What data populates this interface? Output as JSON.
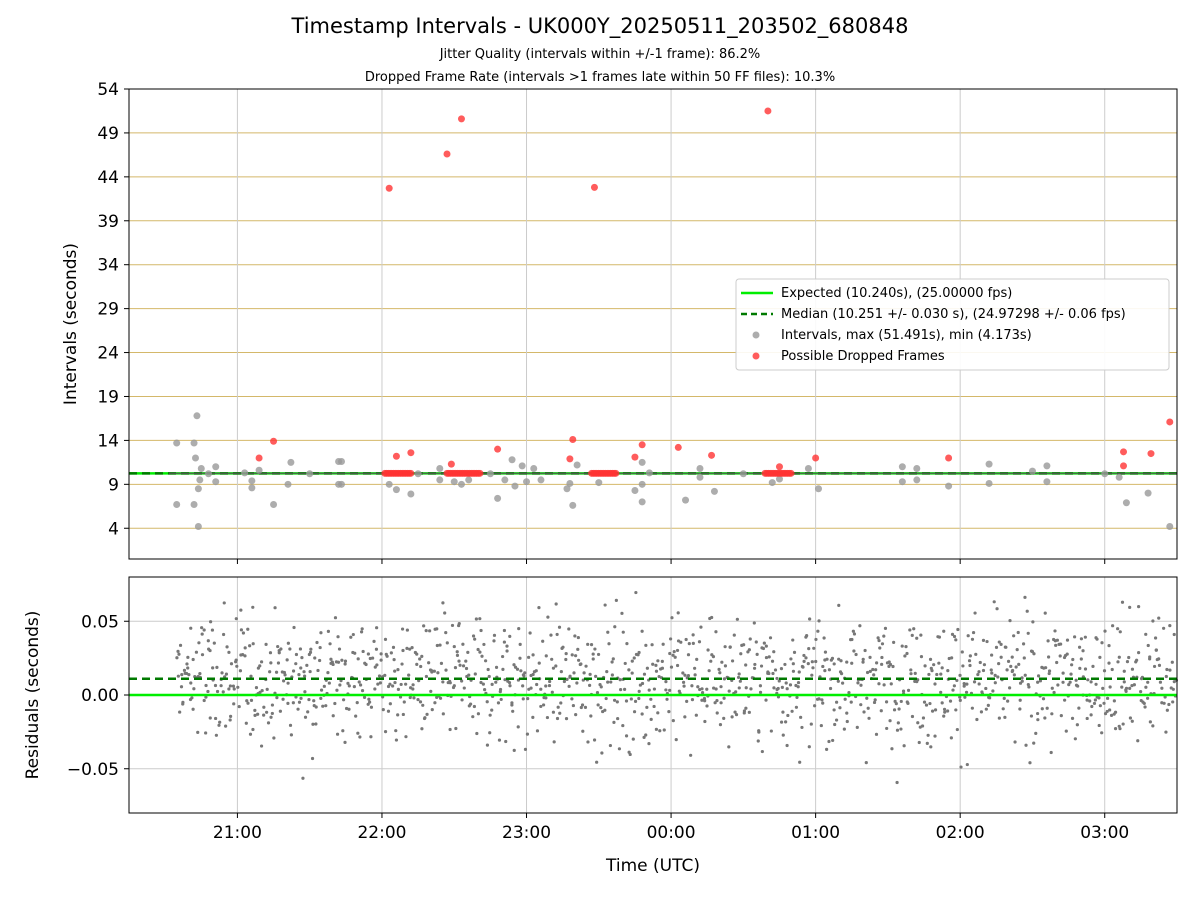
{
  "header": {
    "title": "Timestamp Intervals - UK000Y_20250511_203502_680848",
    "subtitle1": "Jitter Quality (intervals within +/-1 frame): 86.2%",
    "subtitle2": "Dropped Frame Rate (intervals >1 frames late within 50 FF files): 10.3%"
  },
  "colors": {
    "expected": "#00ee00",
    "median": "#007a00",
    "intervals": "#999999",
    "dropped": "#ff3333",
    "hgrid_top": "#d4b86a",
    "grid": "#cccccc",
    "residual_points": "#777777"
  },
  "chart_data": [
    {
      "type": "scatter",
      "ylabel": "Intervals (seconds)",
      "xlabel": "",
      "x_ticks": [
        "21:00",
        "22:00",
        "23:00",
        "00:00",
        "01:00",
        "02:00",
        "03:00"
      ],
      "y_ticks": [
        4,
        9,
        14,
        19,
        24,
        29,
        34,
        39,
        44,
        49,
        54
      ],
      "ylim": [
        0.5,
        54
      ],
      "xlim_hours_after_2000": [
        0.25,
        7.5
      ],
      "grid": "horizontal gold lines at each y tick, vertical gray lines at each x tick",
      "expected_interval": 10.24,
      "median_interval": 10.251,
      "legend_position": "center-right",
      "legend": [
        "Expected (10.240s), (25.00000 fps)",
        "Median (10.251 +/- 0.030 s), (24.97298 +/- 0.06 fps)",
        "Intervals, max (51.491s), min (4.173s)",
        "Possible Dropped Frames"
      ],
      "series": [
        {
          "name": "Intervals, max (51.491s), min (4.173s)",
          "points": [
            [
              20.58,
              13.7
            ],
            [
              20.58,
              6.7
            ],
            [
              20.7,
              6.7
            ],
            [
              20.7,
              13.7
            ],
            [
              20.71,
              12.0
            ],
            [
              20.72,
              16.8
            ],
            [
              20.73,
              4.2
            ],
            [
              20.73,
              8.5
            ],
            [
              20.74,
              9.5
            ],
            [
              20.75,
              10.8
            ],
            [
              20.8,
              10.2
            ],
            [
              20.85,
              11.0
            ],
            [
              20.85,
              9.3
            ],
            [
              21.05,
              10.3
            ],
            [
              21.1,
              8.6
            ],
            [
              21.1,
              9.4
            ],
            [
              21.15,
              10.6
            ],
            [
              21.25,
              6.7
            ],
            [
              21.35,
              9.0
            ],
            [
              21.37,
              11.5
            ],
            [
              21.5,
              10.2
            ],
            [
              21.7,
              11.6
            ],
            [
              21.7,
              9.0
            ],
            [
              21.72,
              11.6
            ],
            [
              21.72,
              9.0
            ],
            [
              22.05,
              9.0
            ],
            [
              22.1,
              8.4
            ],
            [
              22.2,
              7.9
            ],
            [
              22.25,
              10.2
            ],
            [
              22.4,
              9.5
            ],
            [
              22.4,
              10.8
            ],
            [
              22.5,
              9.3
            ],
            [
              22.55,
              9.0
            ],
            [
              22.6,
              9.5
            ],
            [
              22.75,
              10.2
            ],
            [
              22.8,
              7.4
            ],
            [
              22.85,
              9.5
            ],
            [
              22.9,
              11.8
            ],
            [
              22.92,
              8.8
            ],
            [
              22.97,
              11.1
            ],
            [
              23.0,
              9.3
            ],
            [
              23.05,
              10.8
            ],
            [
              23.1,
              9.5
            ],
            [
              23.28,
              8.5
            ],
            [
              23.3,
              9.1
            ],
            [
              23.32,
              6.6
            ],
            [
              23.35,
              11.2
            ],
            [
              23.5,
              9.2
            ],
            [
              23.75,
              8.3
            ],
            [
              23.8,
              7.0
            ],
            [
              23.8,
              11.5
            ],
            [
              23.8,
              9.0
            ],
            [
              23.85,
              10.3
            ],
            [
              24.1,
              7.2
            ],
            [
              24.2,
              9.8
            ],
            [
              24.2,
              10.8
            ],
            [
              24.3,
              8.2
            ],
            [
              24.5,
              10.2
            ],
            [
              24.7,
              9.2
            ],
            [
              24.75,
              9.6
            ],
            [
              24.95,
              10.8
            ],
            [
              25.02,
              8.5
            ],
            [
              25.6,
              11.0
            ],
            [
              25.6,
              9.3
            ],
            [
              25.7,
              10.8
            ],
            [
              25.7,
              9.5
            ],
            [
              25.92,
              8.8
            ],
            [
              26.2,
              11.3
            ],
            [
              26.2,
              9.1
            ],
            [
              26.5,
              10.5
            ],
            [
              26.6,
              11.1
            ],
            [
              26.6,
              9.3
            ],
            [
              27.0,
              10.2
            ],
            [
              27.1,
              9.8
            ],
            [
              27.15,
              6.9
            ],
            [
              27.3,
              8.0
            ],
            [
              27.45,
              4.2
            ]
          ]
        },
        {
          "name": "Possible Dropped Frames",
          "points": [
            [
              21.15,
              12.0
            ],
            [
              21.25,
              13.9
            ],
            [
              22.05,
              42.7
            ],
            [
              22.1,
              12.2
            ],
            [
              22.2,
              12.6
            ],
            [
              22.45,
              46.6
            ],
            [
              22.48,
              11.3
            ],
            [
              22.55,
              50.6
            ],
            [
              22.8,
              13.0
            ],
            [
              23.3,
              11.9
            ],
            [
              23.32,
              14.1
            ],
            [
              23.47,
              42.8
            ],
            [
              23.75,
              12.1
            ],
            [
              23.8,
              13.5
            ],
            [
              24.05,
              13.2
            ],
            [
              24.28,
              12.3
            ],
            [
              24.67,
              51.5
            ],
            [
              24.75,
              11.0
            ],
            [
              25.0,
              12.0
            ],
            [
              25.92,
              12.0
            ],
            [
              27.13,
              12.7
            ],
            [
              27.13,
              11.1
            ],
            [
              27.32,
              12.5
            ],
            [
              27.45,
              16.1
            ]
          ],
          "dense_runs_at_median": [
            [
              22.02,
              22.2
            ],
            [
              22.45,
              22.68
            ],
            [
              23.45,
              23.62
            ],
            [
              24.65,
              24.83
            ]
          ]
        }
      ]
    },
    {
      "type": "scatter",
      "ylabel": "Residuals (seconds)",
      "xlabel": "Time (UTC)",
      "x_ticks": [
        "21:00",
        "22:00",
        "23:00",
        "00:00",
        "01:00",
        "02:00",
        "03:00"
      ],
      "y_ticks": [
        "0.05",
        "0.00",
        "−0.05"
      ],
      "ylim": [
        -0.08,
        0.08
      ],
      "expected_residual": 0.0,
      "median_residual": 0.011,
      "point_count": 1300,
      "residual_range": [
        -0.08,
        0.08
      ],
      "grid": "gray lines at each tick"
    }
  ]
}
